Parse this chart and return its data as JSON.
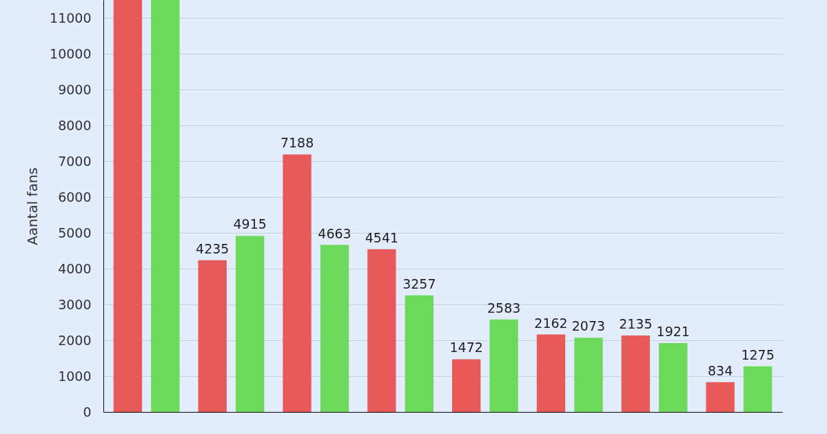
{
  "chart_data": {
    "type": "bar",
    "ylabel": "Aantal fans",
    "categories": [
      null,
      null,
      null,
      null,
      null,
      null,
      null,
      null
    ],
    "ylim": [
      0,
      11500
    ],
    "yticks": [
      0,
      1000,
      2000,
      3000,
      4000,
      5000,
      6000,
      7000,
      8000,
      9000,
      10000,
      11000
    ],
    "grid": "y",
    "series": [
      {
        "color": "#e85a5a",
        "values": [
          11500,
          4235,
          7188,
          4541,
          1472,
          2162,
          2135,
          834
        ],
        "value_labels": [
          null,
          "4235",
          "7188",
          "4541",
          "1472",
          "2162",
          "2135",
          "834"
        ]
      },
      {
        "color": "#6cd95c",
        "values": [
          11500,
          4915,
          4663,
          3257,
          2583,
          2073,
          1921,
          1275
        ],
        "value_labels": [
          null,
          "4915",
          "4663",
          "3257",
          "2583",
          "2073",
          "1921",
          "1275"
        ]
      }
    ]
  }
}
